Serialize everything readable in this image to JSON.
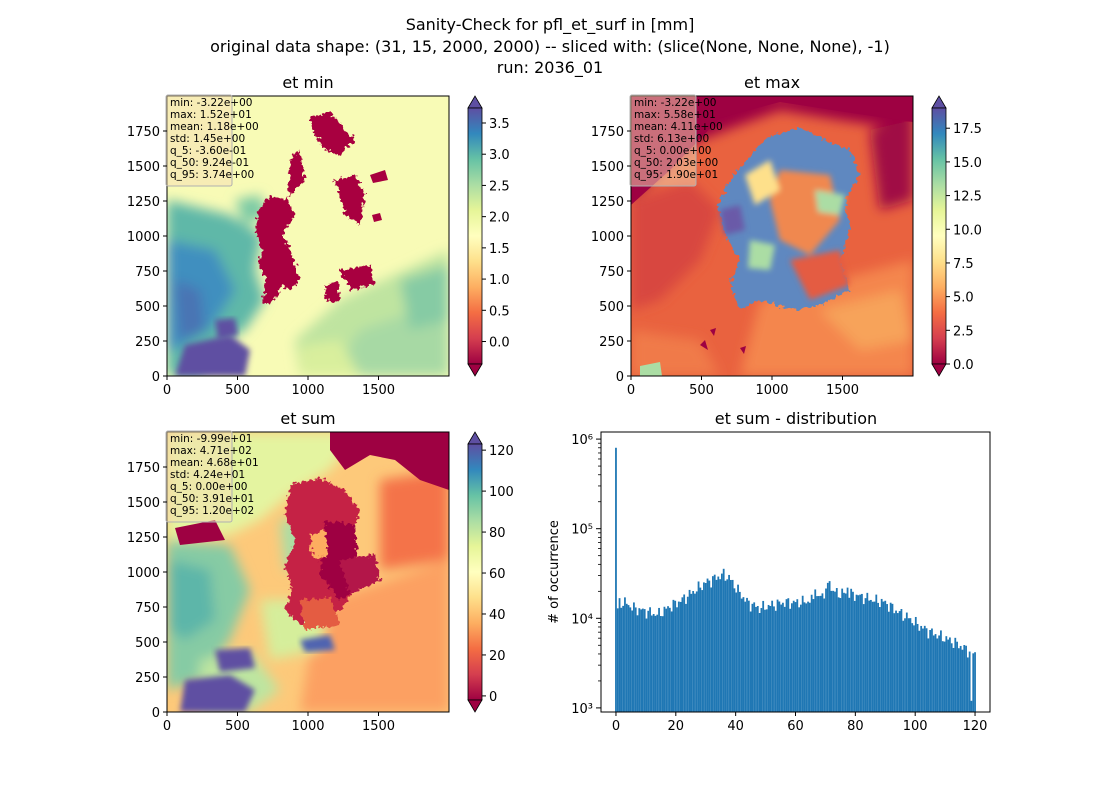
{
  "figure": {
    "title_lines": [
      "Sanity-Check for pfl_et_surf in [mm]",
      "original data shape: (31, 15, 2000, 2000) -- sliced with: (slice(None, None, None), -1)",
      "run: 2036_01"
    ]
  },
  "colors": {
    "spectral": [
      "#9e0142",
      "#d53e4f",
      "#f46d43",
      "#fdae61",
      "#fee08b",
      "#ffffbf",
      "#e6f598",
      "#abdda4",
      "#66c2a5",
      "#3288bd",
      "#5e4fa2"
    ],
    "hist_bar": "#1f77b4",
    "statbox_bg": "#f5deb3"
  },
  "panels": [
    {
      "title": "et min",
      "stats": [
        "min: -3.22e+00",
        "max: 1.52e+01",
        "mean: 1.18e+00",
        "std: 1.45e+00",
        "q_5: -3.60e-01",
        "q_50: 9.24e-01",
        "q_95: 3.74e+00"
      ],
      "xticks": [
        "0",
        "500",
        "1000",
        "1500"
      ],
      "yticks": [
        "0",
        "250",
        "500",
        "750",
        "1000",
        "1250",
        "1500",
        "1750"
      ],
      "cbar_ticks": [
        "0.0",
        "0.5",
        "1.0",
        "1.5",
        "2.0",
        "2.5",
        "3.0",
        "3.5"
      ]
    },
    {
      "title": "et max",
      "stats": [
        "min: -3.22e+00",
        "max: 5.58e+01",
        "mean: 4.11e+00",
        "std: 6.13e+00",
        "q_5: 0.00e+00",
        "q_50: 2.03e+00",
        "q_95: 1.90e+01"
      ],
      "xticks": [
        "0",
        "500",
        "1000",
        "1500"
      ],
      "yticks": [
        "0",
        "250",
        "500",
        "750",
        "1000",
        "1250",
        "1500",
        "1750"
      ],
      "cbar_ticks": [
        "0.0",
        "2.5",
        "5.0",
        "7.5",
        "10.0",
        "12.5",
        "15.0",
        "17.5"
      ]
    },
    {
      "title": "et sum",
      "stats": [
        "min: -9.99e+01",
        "max: 4.71e+02",
        "mean: 4.68e+01",
        "std: 4.24e+01",
        "q_5: 0.00e+00",
        "q_50: 3.91e+01",
        "q_95: 1.20e+02"
      ],
      "xticks": [
        "0",
        "500",
        "1000",
        "1500"
      ],
      "yticks": [
        "0",
        "250",
        "500",
        "750",
        "1000",
        "1250",
        "1500",
        "1750"
      ],
      "cbar_ticks": [
        "0",
        "20",
        "40",
        "60",
        "80",
        "100",
        "120"
      ]
    }
  ],
  "chart_data": [
    {
      "type": "heatmap",
      "title": "et min",
      "xlim": [
        0,
        2000
      ],
      "ylim": [
        0,
        2000
      ],
      "colorbar": {
        "vmin": -0.36,
        "vmax": 3.74,
        "ticks": [
          0.0,
          0.5,
          1.0,
          1.5,
          2.0,
          2.5,
          3.0,
          3.5
        ],
        "extend": "both",
        "cmap": "Spectral"
      }
    },
    {
      "type": "heatmap",
      "title": "et max",
      "xlim": [
        0,
        2000
      ],
      "ylim": [
        0,
        2000
      ],
      "colorbar": {
        "vmin": 0.0,
        "vmax": 19.0,
        "ticks": [
          0.0,
          2.5,
          5.0,
          7.5,
          10.0,
          12.5,
          15.0,
          17.5
        ],
        "extend": "both",
        "cmap": "Spectral"
      }
    },
    {
      "type": "heatmap",
      "title": "et sum",
      "xlim": [
        0,
        2000
      ],
      "ylim": [
        0,
        2000
      ],
      "colorbar": {
        "vmin": 0,
        "vmax": 120,
        "ticks": [
          0,
          20,
          40,
          60,
          80,
          100,
          120
        ],
        "extend": "both",
        "cmap": "Spectral"
      }
    },
    {
      "type": "bar",
      "title": "et sum - distribution",
      "ylabel": "# of occurrence",
      "xlabel": "",
      "yscale": "log",
      "xlim": [
        -5,
        125
      ],
      "ylim": [
        900,
        1200000
      ],
      "xticks": [
        0,
        20,
        40,
        60,
        80,
        100,
        120
      ],
      "yticks": [
        1000,
        10000,
        100000,
        1000000
      ],
      "ytick_labels": [
        "10³",
        "10⁴",
        "10⁵",
        "10⁶"
      ],
      "bin_width": 0.6,
      "anchors": [
        [
          0,
          9800
        ],
        [
          1,
          15000
        ],
        [
          3,
          15000
        ],
        [
          6,
          13000
        ],
        [
          10,
          12000
        ],
        [
          14,
          11000
        ],
        [
          18,
          13500
        ],
        [
          22,
          16000
        ],
        [
          26,
          20000
        ],
        [
          30,
          25000
        ],
        [
          34,
          29000
        ],
        [
          36,
          31000
        ],
        [
          38,
          28000
        ],
        [
          41,
          20000
        ],
        [
          44,
          15000
        ],
        [
          48,
          13000
        ],
        [
          52,
          14000
        ],
        [
          56,
          15000
        ],
        [
          60,
          15000
        ],
        [
          64,
          15500
        ],
        [
          68,
          17000
        ],
        [
          71,
          22000
        ],
        [
          74,
          19000
        ],
        [
          78,
          19000
        ],
        [
          82,
          17500
        ],
        [
          86,
          16000
        ],
        [
          90,
          15000
        ],
        [
          94,
          12000
        ],
        [
          98,
          10000
        ],
        [
          102,
          8000
        ],
        [
          106,
          6800
        ],
        [
          110,
          6000
        ],
        [
          114,
          5200
        ],
        [
          117,
          4500
        ],
        [
          120,
          4000
        ]
      ],
      "spikes": [
        [
          0,
          800000
        ],
        [
          71.2,
          26000
        ],
        [
          77.4,
          22000
        ],
        [
          66.4,
          21000
        ],
        [
          118.8,
          1200
        ]
      ]
    }
  ]
}
